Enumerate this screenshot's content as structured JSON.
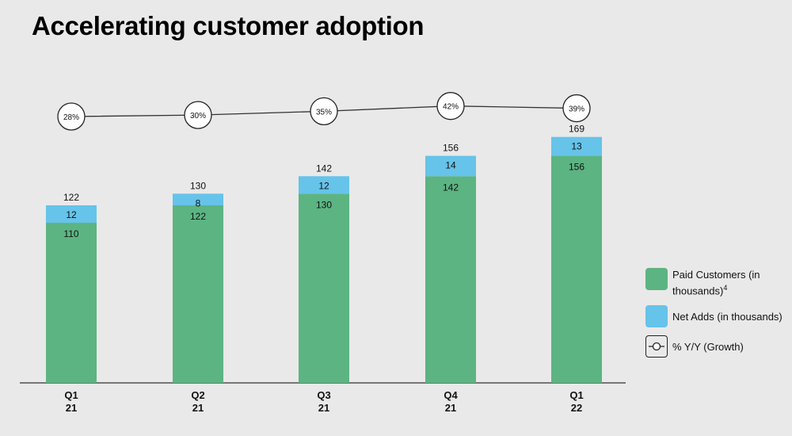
{
  "title": "Accelerating customer adoption",
  "chart_data": {
    "type": "bar",
    "stacked": true,
    "categories": [
      [
        "Q1",
        "21"
      ],
      [
        "Q2",
        "21"
      ],
      [
        "Q3",
        "21"
      ],
      [
        "Q4",
        "21"
      ],
      [
        "Q1",
        "22"
      ]
    ],
    "series": [
      {
        "name": "Paid Customers (in thousands)",
        "superscript": "4",
        "color": "#5cb482",
        "values": [
          110,
          122,
          130,
          142,
          156
        ]
      },
      {
        "name": "Net Adds (in thousands)",
        "color": "#66c3ea",
        "values": [
          12,
          8,
          12,
          14,
          13
        ]
      }
    ],
    "totals": [
      122,
      130,
      142,
      156,
      169
    ],
    "growth": {
      "name": "% Y/Y (Growth)",
      "values": [
        28,
        30,
        35,
        42,
        39
      ],
      "labels": [
        "28%",
        "30%",
        "35%",
        "42%",
        "39%"
      ]
    },
    "ylim": [
      0,
      180
    ],
    "legend": "right"
  }
}
